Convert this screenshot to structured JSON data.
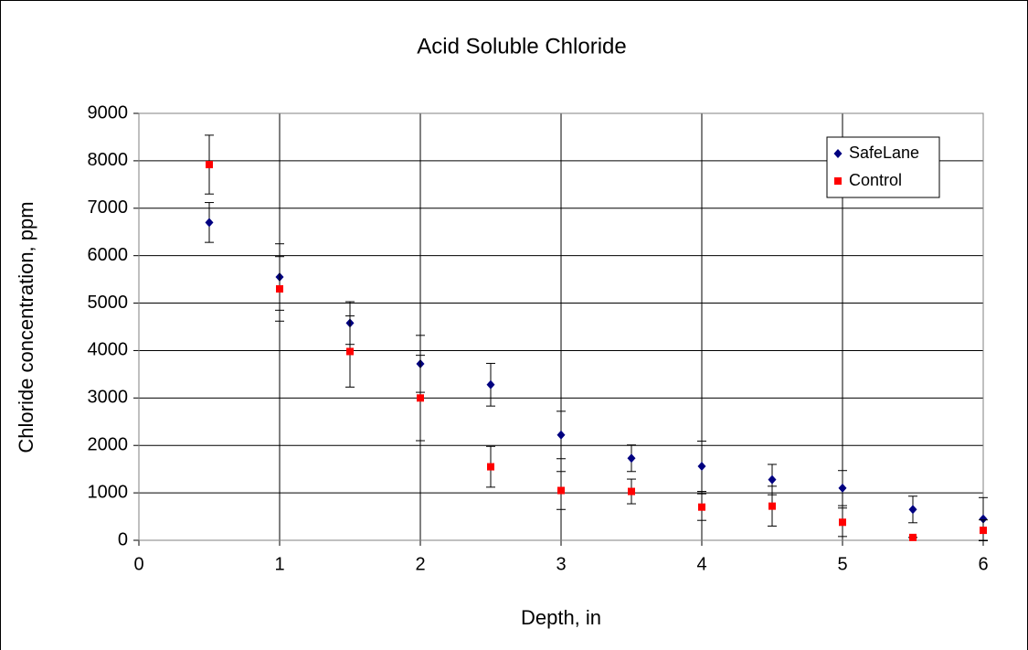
{
  "chart_data": {
    "type": "scatter",
    "title": "Acid Soluble Chloride",
    "xlabel": "Depth, in",
    "ylabel": "Chloride concentration, ppm",
    "x": [
      0.5,
      1,
      1.5,
      2,
      2.5,
      3,
      3.5,
      4,
      4.5,
      5,
      5.5,
      6
    ],
    "series": [
      {
        "name": "SafeLane",
        "color": "#000080",
        "marker": "diamond",
        "values": [
          6700,
          5550,
          4580,
          3720,
          3280,
          2220,
          1730,
          1560,
          1280,
          1100,
          650,
          450
        ],
        "errors": [
          420,
          700,
          450,
          600,
          450,
          500,
          280,
          530,
          320,
          370,
          280,
          450
        ]
      },
      {
        "name": "Control",
        "color": "#ff0000",
        "marker": "square",
        "values": [
          7920,
          5300,
          3980,
          3000,
          1550,
          1050,
          1030,
          700,
          720,
          380,
          60,
          210
        ],
        "errors": [
          620,
          680,
          750,
          900,
          430,
          400,
          260,
          280,
          420,
          300,
          0,
          220
        ]
      }
    ],
    "xlim": [
      0,
      6
    ],
    "xticks": [
      0,
      1,
      2,
      3,
      4,
      5,
      6
    ],
    "ylim": [
      0,
      9000
    ],
    "yticks": [
      0,
      1000,
      2000,
      3000,
      4000,
      5000,
      6000,
      7000,
      8000,
      9000
    ],
    "grid": true,
    "legend": "upper right"
  }
}
